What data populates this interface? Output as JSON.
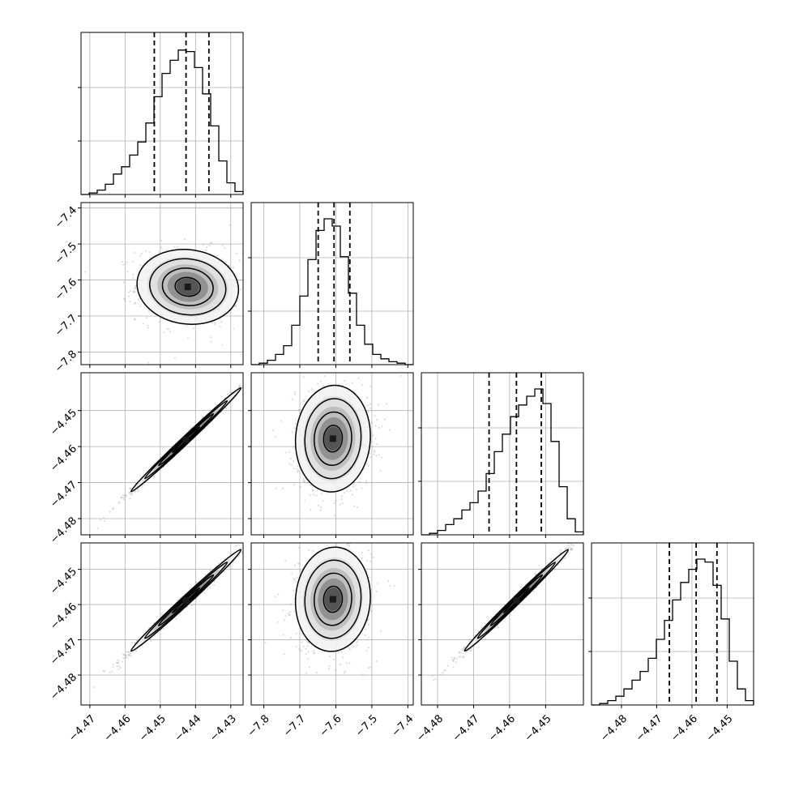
{
  "chart_data": {
    "type": "corner",
    "n_params": 4,
    "grid": true,
    "colors": {
      "line": "#000000",
      "grid": "#b0b0b0",
      "sample": "#9a9a9a",
      "density_dark": "#1a1a1a"
    },
    "parameters": [
      {
        "range": [
          -4.4725,
          -4.4265
        ],
        "ticks": [
          "−4.47",
          "−4.46",
          "−4.45",
          "−4.44",
          "−4.43"
        ],
        "tick_values": [
          -4.47,
          -4.46,
          -4.45,
          -4.44,
          -4.43
        ],
        "quantiles": [
          -4.4517,
          -4.4427,
          -4.4362
        ],
        "hist": {
          "edges_start": -4.4725,
          "bin_width": 0.0023,
          "counts": [
            0.0,
            0.01,
            0.03,
            0.07,
            0.14,
            0.19,
            0.27,
            0.36,
            0.49,
            0.67,
            0.83,
            0.92,
            0.99,
            0.98,
            0.87,
            0.69,
            0.47,
            0.23,
            0.08,
            0.02
          ]
        }
      },
      {
        "range": [
          -7.835,
          -7.385
        ],
        "ticks": [
          "−7.8",
          "−7.7",
          "−7.6",
          "−7.5",
          "−7.4"
        ],
        "tick_values": [
          -7.8,
          -7.7,
          -7.6,
          -7.5,
          -7.4
        ],
        "quantiles": [
          -7.649,
          -7.605,
          -7.561
        ],
        "hist": {
          "edges_start": -7.835,
          "bin_width": 0.0225,
          "counts": [
            0.0,
            0.01,
            0.03,
            0.07,
            0.13,
            0.27,
            0.47,
            0.72,
            0.92,
            1.0,
            0.95,
            0.74,
            0.49,
            0.27,
            0.14,
            0.07,
            0.04,
            0.02,
            0.01,
            0.0
          ]
        }
      },
      {
        "range": [
          -4.4845,
          -4.4395
        ],
        "ticks": [
          "−4.48",
          "−4.47",
          "−4.46",
          "−4.45"
        ],
        "tick_values": [
          -4.48,
          -4.47,
          -4.46,
          -4.45
        ],
        "quantiles": [
          -4.4657,
          -4.4581,
          -4.4512
        ],
        "hist": {
          "edges_start": -4.4845,
          "bin_width": 0.00225,
          "counts": [
            0.0,
            0.01,
            0.03,
            0.07,
            0.11,
            0.17,
            0.22,
            0.3,
            0.42,
            0.57,
            0.69,
            0.81,
            0.89,
            0.95,
            1.0,
            0.9,
            0.64,
            0.33,
            0.11,
            0.02
          ]
        }
      },
      {
        "range": [
          -4.4885,
          -4.4425
        ],
        "ticks": [
          "−4.48",
          "−4.47",
          "−4.46",
          "−4.45"
        ],
        "tick_values": [
          -4.48,
          -4.47,
          -4.46,
          -4.45
        ],
        "quantiles": [
          -4.4664,
          -4.4588,
          -4.4529
        ],
        "hist": {
          "edges_start": -4.4885,
          "bin_width": 0.0023,
          "counts": [
            0.0,
            0.01,
            0.03,
            0.06,
            0.11,
            0.17,
            0.23,
            0.32,
            0.45,
            0.58,
            0.72,
            0.84,
            0.93,
            1.0,
            0.98,
            0.82,
            0.59,
            0.3,
            0.11,
            0.03
          ]
        }
      }
    ],
    "pairs": [
      {
        "x": 0,
        "y": 1,
        "mean": [
          -4.4422,
          -7.619
        ],
        "sd": [
          0.0072,
          0.052
        ],
        "rho": -0.08
      },
      {
        "x": 0,
        "y": 2,
        "mean": [
          -4.4427,
          -4.4581
        ],
        "sd": [
          0.0078,
          0.0072
        ],
        "rho": 0.995
      },
      {
        "x": 1,
        "y": 2,
        "mean": [
          -7.608,
          -4.4578
        ],
        "sd": [
          0.052,
          0.0074
        ],
        "rho": 0.05
      },
      {
        "x": 0,
        "y": 3,
        "mean": [
          -4.4427,
          -4.4588
        ],
        "sd": [
          0.0078,
          0.0072
        ],
        "rho": 0.993
      },
      {
        "x": 1,
        "y": 3,
        "mean": [
          -7.608,
          -4.4585
        ],
        "sd": [
          0.052,
          0.0074
        ],
        "rho": 0.05
      },
      {
        "x": 2,
        "y": 3,
        "mean": [
          -4.4581,
          -4.4588
        ],
        "sd": [
          0.0072,
          0.0072
        ],
        "rho": 0.994
      }
    ]
  }
}
